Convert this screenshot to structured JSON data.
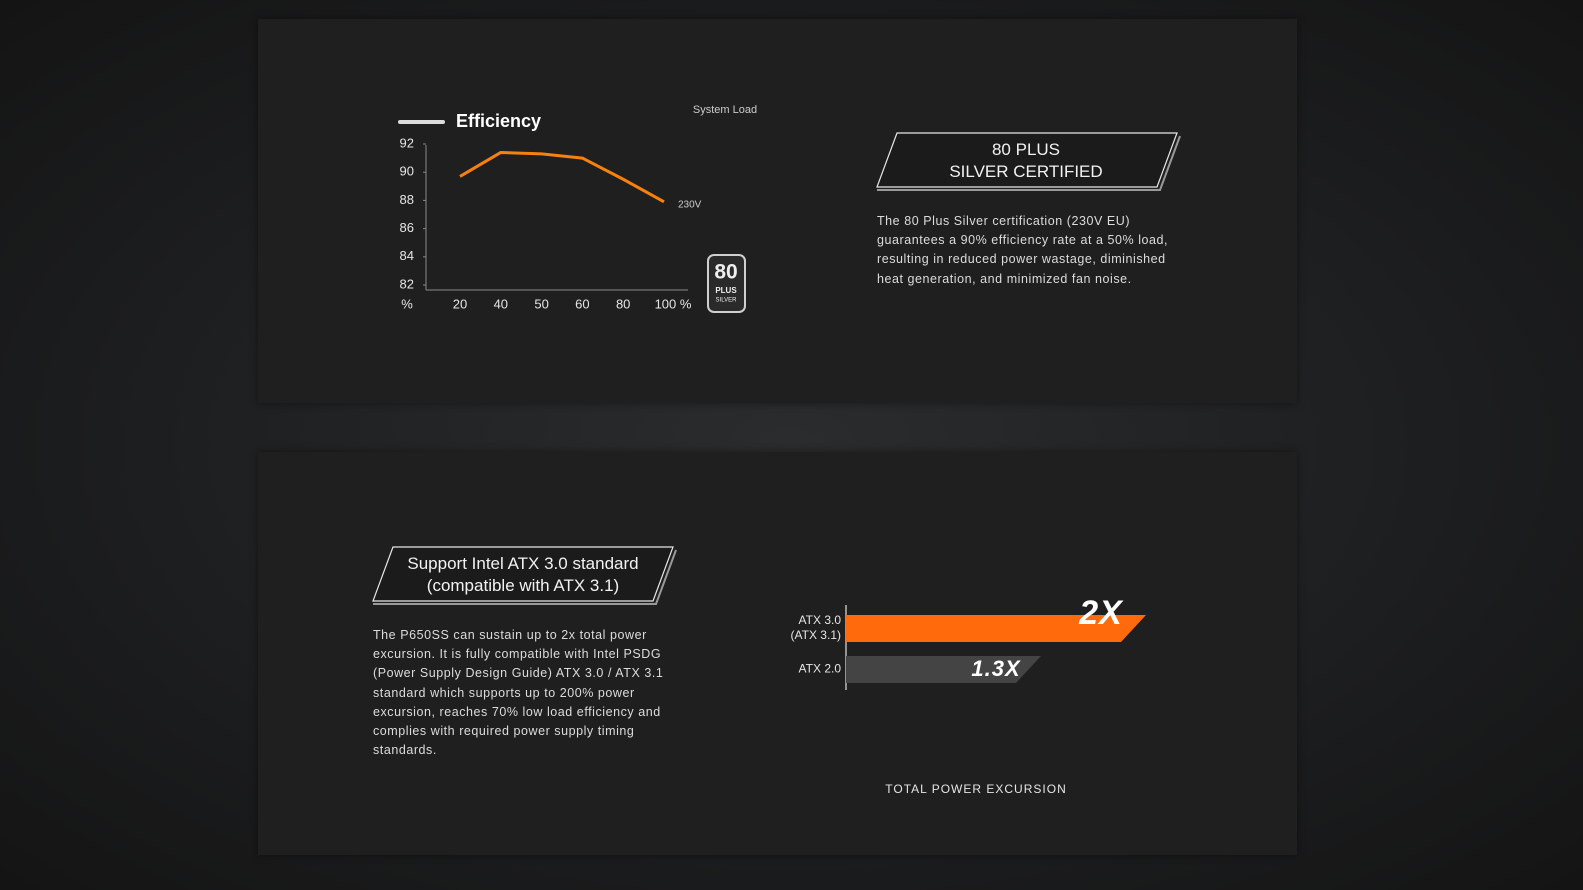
{
  "chart_data": [
    {
      "type": "line",
      "x_label": "System Load",
      "y_unit": "%",
      "categories": [
        "20",
        "40",
        "50",
        "60",
        "80",
        "100 %"
      ],
      "series": [
        {
          "name": "Efficiency",
          "color": "#f7810f",
          "values": [
            89.7,
            91.4,
            91.3,
            91.0,
            89.5,
            87.9
          ]
        }
      ],
      "line_label": "230V",
      "ylim": [
        82,
        92
      ],
      "yticks": [
        82,
        84,
        86,
        88,
        90,
        92
      ],
      "badge": {
        "number": "80",
        "plus": "PLUS",
        "grade": "SILVER"
      }
    },
    {
      "type": "hbar",
      "x_label": "TOTAL POWER EXCURSION",
      "categories": [
        "ATX 3.0\n(ATX 3.1)",
        "ATX 2.0"
      ],
      "values": [
        2,
        1.3
      ],
      "value_labels": [
        "2X",
        "1.3X"
      ],
      "colors": [
        "#ff6a0d",
        "#444444"
      ],
      "xlim": [
        0,
        2
      ]
    }
  ],
  "sections": [
    {
      "heading": "80 PLUS\nSILVER CERTIFIED",
      "text": "The 80 Plus Silver certification (230V EU) guarantees a 90% efficiency rate at a 50% load, resulting in reduced power wastage, diminished heat generation, and minimized fan noise."
    },
    {
      "heading": "Support Intel ATX 3.0 standard\n(compatible with ATX 3.1)",
      "text": "The P650SS can sustain up to 2x total power excursion. It is fully compatible with Intel PSDG (Power Supply Design Guide) ATX 3.0 / ATX 3.1 standard which supports up to 200% power excursion, reaches 70% low load efficiency and complies with required power supply timing standards."
    }
  ]
}
